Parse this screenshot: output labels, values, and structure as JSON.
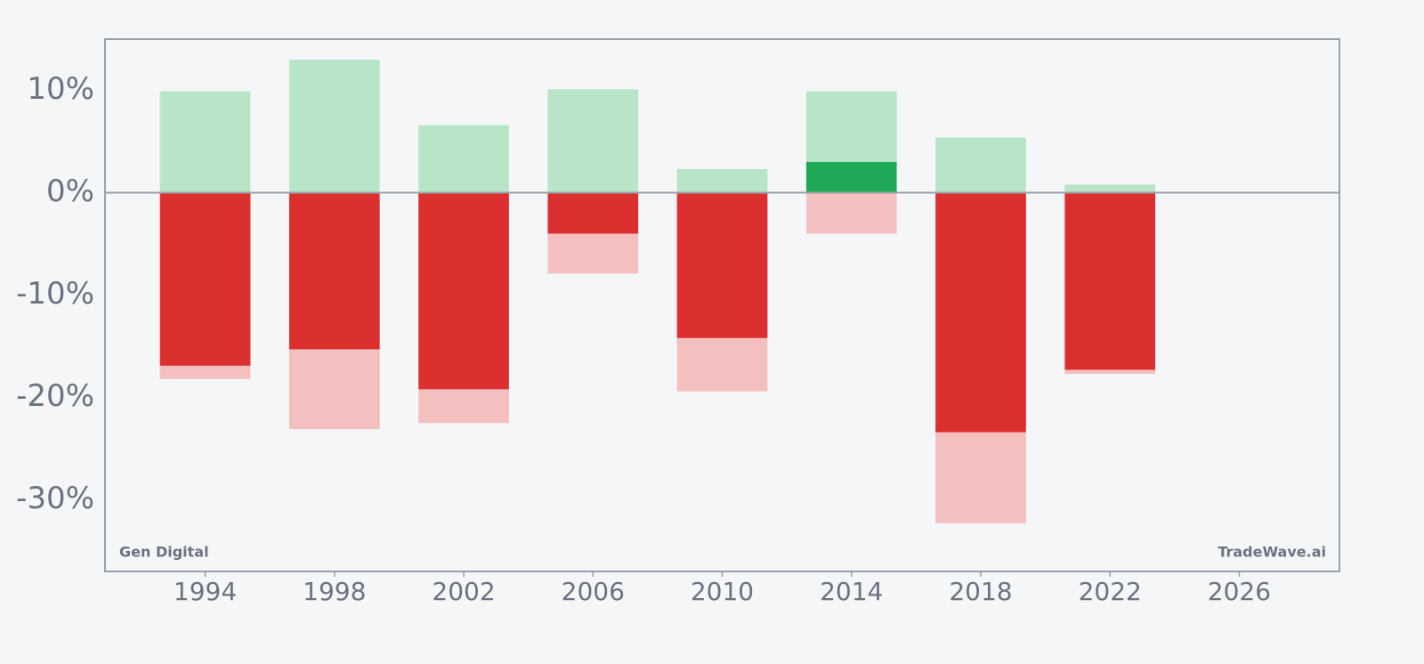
{
  "chart_data": {
    "type": "bar",
    "x": [
      1994,
      1998,
      2002,
      2006,
      2010,
      2014,
      2018,
      2022
    ],
    "series": [
      {
        "color": "#b8e4c8",
        "values": [
          9.9,
          13.0,
          6.6,
          10.1,
          2.3,
          9.9,
          5.4,
          0.8
        ]
      },
      {
        "color": "#f4bfbf",
        "values": [
          -18.2,
          -23.1,
          -22.5,
          -7.9,
          -19.4,
          -4.0,
          -32.3,
          -17.7
        ]
      },
      {
        "color_positive": "#1fa855",
        "color_negative": "#dc3030",
        "values": [
          -16.9,
          -15.3,
          -19.2,
          -4.0,
          -14.2,
          3.0,
          -23.4,
          -17.3
        ]
      }
    ],
    "xlim": [
      1990.9,
      2029.1
    ],
    "xticks": [
      1994,
      1998,
      2002,
      2006,
      2010,
      2014,
      2018,
      2022,
      2026
    ],
    "ylim": [
      -37,
      15
    ],
    "yticks": [
      {
        "value": -30,
        "label": "-30%"
      },
      {
        "value": -20,
        "label": "-20%"
      },
      {
        "value": -10,
        "label": "-10%"
      },
      {
        "value": 0,
        "label": "0%"
      },
      {
        "value": 10,
        "label": "10%"
      }
    ],
    "zero_line": true,
    "annotations": [
      "Gen Digital",
      "TradeWave.ai"
    ]
  }
}
